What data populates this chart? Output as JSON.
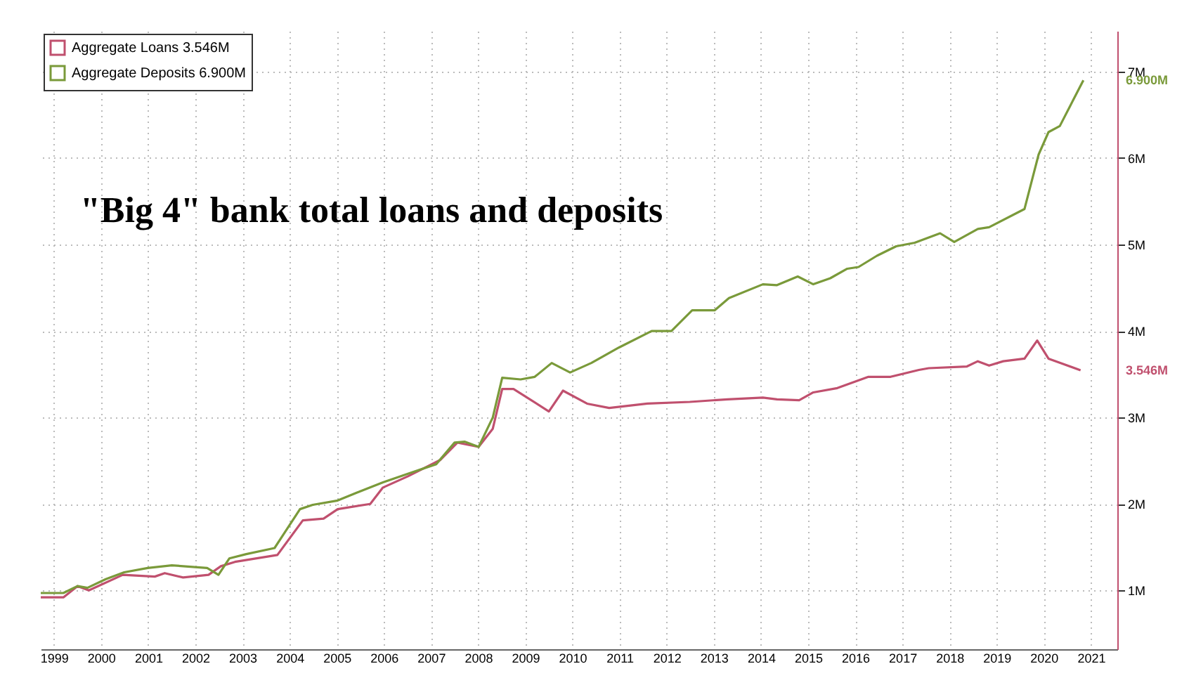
{
  "chart_data": {
    "type": "line",
    "title": "\"Big 4\" bank total loans and deposits",
    "xlim": [
      1999.22,
      2022.06
    ],
    "ylim": [
      0.32,
      7.47
    ],
    "xticks": [
      {
        "value": 1999.5,
        "label": "1999"
      },
      {
        "value": 2000.5,
        "label": "2000"
      },
      {
        "value": 2001.5,
        "label": "2001"
      },
      {
        "value": 2002.5,
        "label": "2002"
      },
      {
        "value": 2003.5,
        "label": "2003"
      },
      {
        "value": 2004.5,
        "label": "2004"
      },
      {
        "value": 2005.5,
        "label": "2005"
      },
      {
        "value": 2006.5,
        "label": "2006"
      },
      {
        "value": 2007.5,
        "label": "2007"
      },
      {
        "value": 2008.5,
        "label": "2008"
      },
      {
        "value": 2009.5,
        "label": "2009"
      },
      {
        "value": 2010.5,
        "label": "2010"
      },
      {
        "value": 2011.5,
        "label": "2011"
      },
      {
        "value": 2012.5,
        "label": "2012"
      },
      {
        "value": 2013.5,
        "label": "2013"
      },
      {
        "value": 2014.5,
        "label": "2014"
      },
      {
        "value": 2015.5,
        "label": "2015"
      },
      {
        "value": 2016.5,
        "label": "2016"
      },
      {
        "value": 2017.5,
        "label": "2017"
      },
      {
        "value": 2018.5,
        "label": "2018"
      },
      {
        "value": 2019.5,
        "label": "2019"
      },
      {
        "value": 2020.5,
        "label": "2020"
      },
      {
        "value": 2021.5,
        "label": "2021"
      }
    ],
    "yticks": [
      {
        "value": 1,
        "label": "1M"
      },
      {
        "value": 2,
        "label": "2M"
      },
      {
        "value": 3,
        "label": "3M"
      },
      {
        "value": 4,
        "label": "4M"
      },
      {
        "value": 5,
        "label": "5M"
      },
      {
        "value": 6,
        "label": "6M"
      },
      {
        "value": 7,
        "label": "7M"
      }
    ],
    "grid": true,
    "legend": "top left",
    "line_style": "solid",
    "marker": "none",
    "series": [
      {
        "name": "Aggregate Loans 3.546M",
        "color": "#c0506e",
        "x": [
          1999.22,
          1999.7,
          2000.0,
          2000.24,
          2000.96,
          2001.64,
          2001.85,
          2002.24,
          2002.78,
          2003.04,
          2003.34,
          2004.24,
          2004.78,
          2005.22,
          2005.52,
          2006.21,
          2006.48,
          2007.01,
          2007.7,
          2008.06,
          2008.51,
          2008.81,
          2009.01,
          2009.25,
          2010.0,
          2010.3,
          2010.81,
          2011.28,
          2012.09,
          2012.99,
          2013.79,
          2014.54,
          2014.84,
          2015.31,
          2015.61,
          2016.12,
          2016.78,
          2017.25,
          2017.85,
          2018.06,
          2018.87,
          2019.1,
          2019.34,
          2019.64,
          2020.09,
          2020.36,
          2020.6,
          2020.9,
          2021.28
        ],
        "values": [
          0.92,
          0.92,
          1.05,
          1.0,
          1.18,
          1.16,
          1.2,
          1.15,
          1.18,
          1.28,
          1.33,
          1.41,
          1.81,
          1.83,
          1.94,
          2.0,
          2.19,
          2.32,
          2.51,
          2.71,
          2.66,
          2.87,
          3.33,
          3.33,
          3.07,
          3.31,
          3.16,
          3.11,
          3.16,
          3.18,
          3.21,
          3.23,
          3.21,
          3.2,
          3.29,
          3.34,
          3.47,
          3.47,
          3.55,
          3.57,
          3.59,
          3.65,
          3.6,
          3.65,
          3.68,
          3.89,
          3.68,
          3.62,
          3.546
        ]
      },
      {
        "name": "Aggregate Deposits 6.900M",
        "color": "#7a9a3a",
        "x": [
          1999.22,
          1999.7,
          2000.0,
          2000.21,
          2000.6,
          2000.99,
          2001.49,
          2002.0,
          2002.75,
          2002.99,
          2003.22,
          2003.58,
          2004.18,
          2004.72,
          2004.99,
          2005.52,
          2005.97,
          2006.48,
          2007.01,
          2007.61,
          2008.0,
          2008.21,
          2008.51,
          2008.81,
          2009.01,
          2009.4,
          2009.7,
          2010.06,
          2010.45,
          2010.9,
          2011.49,
          2012.18,
          2012.6,
          2013.04,
          2013.52,
          2013.82,
          2014.54,
          2014.84,
          2015.28,
          2015.61,
          2015.97,
          2016.33,
          2016.57,
          2016.96,
          2017.37,
          2017.76,
          2018.3,
          2018.6,
          2019.1,
          2019.34,
          2020.09,
          2020.39,
          2020.6,
          2020.84,
          2021.34
        ],
        "values": [
          0.97,
          0.97,
          1.05,
          1.03,
          1.13,
          1.21,
          1.26,
          1.29,
          1.26,
          1.18,
          1.37,
          1.42,
          1.49,
          1.94,
          1.99,
          2.04,
          2.14,
          2.25,
          2.35,
          2.46,
          2.71,
          2.72,
          2.66,
          3.0,
          3.46,
          3.44,
          3.47,
          3.63,
          3.52,
          3.63,
          3.81,
          4.0,
          4.0,
          4.24,
          4.24,
          4.38,
          4.54,
          4.53,
          4.63,
          4.54,
          4.61,
          4.72,
          4.74,
          4.87,
          4.98,
          5.02,
          5.13,
          5.03,
          5.18,
          5.2,
          5.41,
          6.04,
          6.3,
          6.37,
          6.9
        ]
      }
    ],
    "annotations": [
      "3.546M",
      "6.900M"
    ]
  }
}
